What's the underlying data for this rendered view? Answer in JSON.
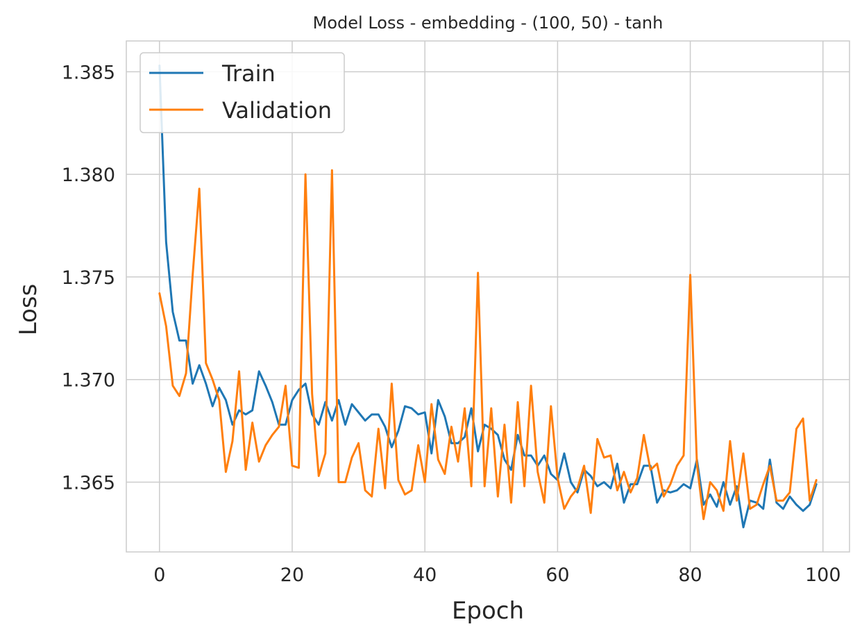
{
  "chart_data": {
    "type": "line",
    "title": "Model Loss - embedding - (100, 50) - tanh",
    "xlabel": "Epoch",
    "ylabel": "Loss",
    "xlim": [
      -5,
      104
    ],
    "ylim": [
      1.3616,
      1.3865
    ],
    "xticks": [
      0,
      20,
      40,
      60,
      80,
      100
    ],
    "yticks": [
      1.365,
      1.37,
      1.375,
      1.38,
      1.385
    ],
    "xtick_labels": [
      "0",
      "20",
      "40",
      "60",
      "80",
      "100"
    ],
    "ytick_labels": [
      "1.365",
      "1.370",
      "1.375",
      "1.380",
      "1.385"
    ],
    "grid": true,
    "legend": "top-left",
    "series": [
      {
        "name": "Train",
        "color": "#1f77b4",
        "values": [
          1.3853,
          1.3767,
          1.3733,
          1.3719,
          1.3719,
          1.3698,
          1.3707,
          1.3698,
          1.3687,
          1.3696,
          1.369,
          1.3678,
          1.3685,
          1.3683,
          1.3685,
          1.3704,
          1.3697,
          1.3689,
          1.3678,
          1.3678,
          1.369,
          1.3695,
          1.3698,
          1.3683,
          1.3678,
          1.3689,
          1.368,
          1.369,
          1.3678,
          1.3688,
          1.3684,
          1.368,
          1.3683,
          1.3683,
          1.3677,
          1.3667,
          1.3675,
          1.3687,
          1.3686,
          1.3683,
          1.3684,
          1.3664,
          1.369,
          1.3682,
          1.3669,
          1.3669,
          1.3672,
          1.3686,
          1.3665,
          1.3678,
          1.3676,
          1.3673,
          1.3661,
          1.3656,
          1.3673,
          1.3663,
          1.3663,
          1.3658,
          1.3663,
          1.3654,
          1.3651,
          1.3664,
          1.365,
          1.3645,
          1.3656,
          1.3653,
          1.3648,
          1.365,
          1.3647,
          1.3659,
          1.364,
          1.3649,
          1.3649,
          1.3658,
          1.3658,
          1.364,
          1.3646,
          1.3645,
          1.3646,
          1.3649,
          1.3647,
          1.3661,
          1.3639,
          1.3644,
          1.3638,
          1.365,
          1.3639,
          1.3648,
          1.3628,
          1.3641,
          1.364,
          1.3637,
          1.3661,
          1.364,
          1.3637,
          1.3643,
          1.3639,
          1.3636,
          1.3639,
          1.3649
        ]
      },
      {
        "name": "Validation",
        "color": "#ff7f0e",
        "values": [
          1.3742,
          1.3726,
          1.3697,
          1.3692,
          1.3703,
          1.3751,
          1.3793,
          1.3708,
          1.37,
          1.369,
          1.3655,
          1.367,
          1.3704,
          1.3656,
          1.3679,
          1.366,
          1.3668,
          1.3673,
          1.3677,
          1.3697,
          1.3658,
          1.3657,
          1.38,
          1.3693,
          1.3653,
          1.3664,
          1.3802,
          1.365,
          1.365,
          1.3662,
          1.3669,
          1.3646,
          1.3643,
          1.3676,
          1.3647,
          1.3698,
          1.3651,
          1.3644,
          1.3646,
          1.3668,
          1.365,
          1.3688,
          1.3661,
          1.3654,
          1.3677,
          1.366,
          1.3686,
          1.3648,
          1.3752,
          1.3648,
          1.3686,
          1.3643,
          1.3678,
          1.364,
          1.3689,
          1.3648,
          1.3697,
          1.3655,
          1.364,
          1.3687,
          1.3652,
          1.3637,
          1.3643,
          1.3647,
          1.3658,
          1.3635,
          1.3671,
          1.3662,
          1.3663,
          1.3646,
          1.3655,
          1.3645,
          1.3652,
          1.3673,
          1.3656,
          1.3659,
          1.3643,
          1.3649,
          1.3658,
          1.3663,
          1.3751,
          1.3659,
          1.3632,
          1.365,
          1.3646,
          1.3636,
          1.367,
          1.3641,
          1.3664,
          1.3637,
          1.3639,
          1.3649,
          1.3658,
          1.3641,
          1.3641,
          1.3645,
          1.3676,
          1.3681,
          1.3641,
          1.3651
        ]
      }
    ]
  }
}
